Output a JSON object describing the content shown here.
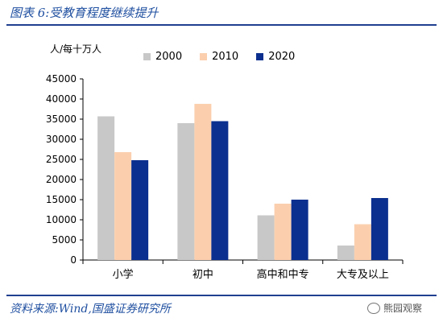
{
  "header": {
    "title": "图表 6:受教育程度继续提升"
  },
  "footer": {
    "source": "资料来源:Wind,国盛证券研究所"
  },
  "watermark": {
    "text": "熊园观察",
    "icon": "wechat-icon"
  },
  "chart_data": {
    "type": "bar",
    "unit_label": "人/每十万人",
    "categories": [
      "小学",
      "初中",
      "高中和中专",
      "大专及以上"
    ],
    "series": [
      {
        "name": "2000",
        "color": "#c8c8c8",
        "values": [
          35700,
          34000,
          11100,
          3600
        ]
      },
      {
        "name": "2010",
        "color": "#fbcfae",
        "values": [
          26800,
          38800,
          14000,
          8900
        ]
      },
      {
        "name": "2020",
        "color": "#0b2f8f",
        "values": [
          24800,
          34500,
          15000,
          15400
        ]
      }
    ],
    "ylim": [
      0,
      45000
    ],
    "yticks": [
      "0",
      "5000",
      "10000",
      "15000",
      "20000",
      "25000",
      "30000",
      "35000",
      "40000",
      "45000"
    ],
    "grid": false,
    "legend_position": "top"
  }
}
